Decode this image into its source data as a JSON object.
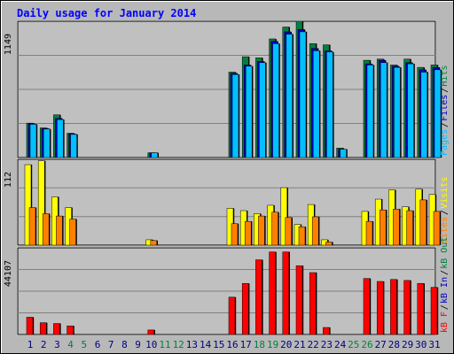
{
  "title": "Daily usage for January 2014",
  "chart_data": [
    {
      "type": "bar",
      "panel": "hits-files-pages",
      "max_label": "1149",
      "ylim": [
        0,
        1149
      ],
      "grid": true,
      "legend": {
        "placement": "right-vertical",
        "sep": "/",
        "labels": [
          "Pages",
          "Files",
          "Hits"
        ]
      },
      "categories": [
        "1",
        "2",
        "3",
        "4",
        "5",
        "6",
        "7",
        "8",
        "9",
        "10",
        "11",
        "12",
        "13",
        "14",
        "15",
        "16",
        "17",
        "18",
        "19",
        "20",
        "21",
        "22",
        "23",
        "24",
        "25",
        "26",
        "27",
        "28",
        "29",
        "30",
        "31"
      ],
      "series": [
        {
          "name": "Hits",
          "color": "#008040",
          "values": [
            290,
            250,
            360,
            205,
            0,
            0,
            0,
            0,
            0,
            40,
            0,
            0,
            0,
            0,
            0,
            720,
            850,
            840,
            1000,
            1100,
            1150,
            960,
            950,
            80,
            0,
            820,
            830,
            780,
            830,
            760,
            780
          ]
        },
        {
          "name": "Files",
          "color": "#0000c0",
          "values": [
            285,
            245,
            330,
            200,
            0,
            0,
            0,
            0,
            0,
            40,
            0,
            0,
            0,
            0,
            0,
            710,
            780,
            810,
            980,
            1060,
            1080,
            920,
            900,
            70,
            0,
            790,
            820,
            770,
            800,
            740,
            760
          ]
        },
        {
          "name": "Pages",
          "color": "#00c0ff",
          "values": [
            280,
            240,
            320,
            195,
            0,
            0,
            0,
            0,
            0,
            40,
            0,
            0,
            0,
            0,
            0,
            700,
            770,
            800,
            960,
            1040,
            1060,
            900,
            890,
            70,
            0,
            780,
            800,
            760,
            790,
            720,
            740
          ]
        }
      ]
    },
    {
      "type": "bar",
      "panel": "visits-sites",
      "max_label": "112",
      "ylim": [
        0,
        112
      ],
      "grid": true,
      "legend": {
        "placement": "right-vertical",
        "sep": "/",
        "labels": [
          "Sites",
          "Visits"
        ]
      },
      "categories": [
        "1",
        "2",
        "3",
        "4",
        "5",
        "6",
        "7",
        "8",
        "9",
        "10",
        "11",
        "12",
        "13",
        "14",
        "15",
        "16",
        "17",
        "18",
        "19",
        "20",
        "21",
        "22",
        "23",
        "24",
        "25",
        "26",
        "27",
        "28",
        "29",
        "30",
        "31"
      ],
      "series": [
        {
          "name": "Visits",
          "color": "#ffff00",
          "values": [
            105,
            110,
            63,
            49,
            0,
            0,
            0,
            0,
            0,
            7,
            0,
            0,
            0,
            0,
            0,
            48,
            45,
            41,
            52,
            75,
            27,
            53,
            7,
            0,
            0,
            44,
            60,
            72,
            50,
            73,
            66
          ]
        },
        {
          "name": "Sites",
          "color": "#ff8000",
          "values": [
            49,
            41,
            38,
            34,
            0,
            0,
            0,
            0,
            0,
            6,
            0,
            0,
            0,
            0,
            0,
            28,
            31,
            38,
            43,
            36,
            24,
            37,
            4,
            0,
            0,
            31,
            46,
            47,
            45,
            59,
            44
          ]
        }
      ]
    },
    {
      "type": "bar",
      "panel": "kbytes",
      "max_label": "44107",
      "ylim": [
        0,
        44107
      ],
      "grid": true,
      "legend": {
        "placement": "right-vertical",
        "sep": "/",
        "labels": [
          "kB F",
          "kB In",
          "kB Out"
        ]
      },
      "categories": [
        "1",
        "2",
        "3",
        "4",
        "5",
        "6",
        "7",
        "8",
        "9",
        "10",
        "11",
        "12",
        "13",
        "14",
        "15",
        "16",
        "17",
        "18",
        "19",
        "20",
        "21",
        "22",
        "23",
        "24",
        "25",
        "26",
        "27",
        "28",
        "29",
        "30",
        "31"
      ],
      "series": [
        {
          "name": "kB F",
          "color": "#ff0000",
          "values": [
            8800,
            6000,
            5600,
            4400,
            0,
            0,
            0,
            0,
            0,
            2300,
            0,
            0,
            0,
            0,
            0,
            19000,
            26000,
            38000,
            42000,
            42000,
            35000,
            31500,
            3600,
            0,
            0,
            28500,
            27000,
            28000,
            27500,
            26000,
            24000
          ]
        }
      ]
    }
  ],
  "weekend_days": [
    "4",
    "5",
    "11",
    "12",
    "18",
    "19",
    "25",
    "26"
  ],
  "colors": {
    "frame": "#b8b8b8",
    "plot": "#c0c0c0",
    "grid": "#808080",
    "title": "#0000ff",
    "weekday_label": "#000080",
    "weekend_label": "#008040",
    "max_label": "#000000"
  }
}
